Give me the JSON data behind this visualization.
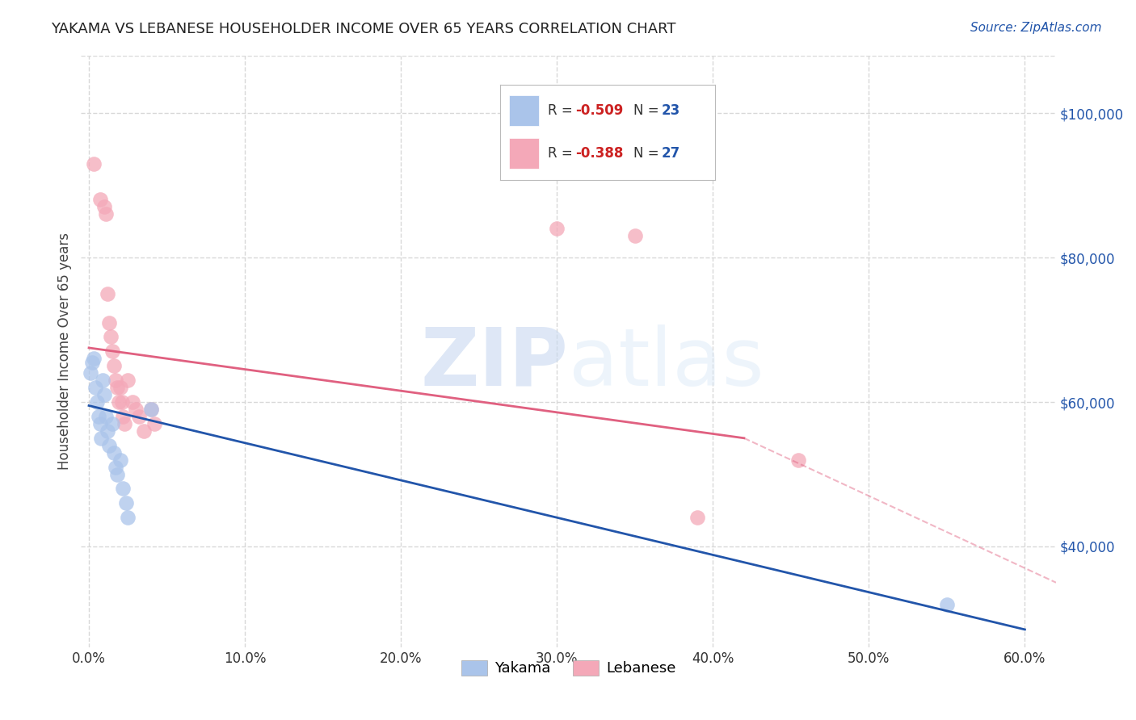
{
  "title": "YAKAMA VS LEBANESE HOUSEHOLDER INCOME OVER 65 YEARS CORRELATION CHART",
  "source": "Source: ZipAtlas.com",
  "ylabel": "Householder Income Over 65 years",
  "xlabel_ticks": [
    "0.0%",
    "10.0%",
    "20.0%",
    "30.0%",
    "40.0%",
    "50.0%",
    "60.0%"
  ],
  "ytick_labels": [
    "$40,000",
    "$60,000",
    "$80,000",
    "$100,000"
  ],
  "ytick_values": [
    40000,
    60000,
    80000,
    100000
  ],
  "xlim": [
    -0.005,
    0.62
  ],
  "ylim": [
    26000,
    108000
  ],
  "background_color": "#ffffff",
  "grid_color": "#d8d8d8",
  "watermark_zip": "ZIP",
  "watermark_atlas": "atlas",
  "legend": {
    "yakama_R": "-0.509",
    "yakama_N": "23",
    "lebanese_R": "-0.388",
    "lebanese_N": "27"
  },
  "yakama_color": "#aac4ea",
  "lebanese_color": "#f4a8b8",
  "yakama_line_color": "#2255aa",
  "lebanese_line_color": "#e06080",
  "yakama_points": [
    [
      0.001,
      64000
    ],
    [
      0.002,
      65500
    ],
    [
      0.003,
      66000
    ],
    [
      0.004,
      62000
    ],
    [
      0.005,
      60000
    ],
    [
      0.006,
      58000
    ],
    [
      0.007,
      57000
    ],
    [
      0.008,
      55000
    ],
    [
      0.009,
      63000
    ],
    [
      0.01,
      61000
    ],
    [
      0.011,
      58000
    ],
    [
      0.012,
      56000
    ],
    [
      0.013,
      54000
    ],
    [
      0.015,
      57000
    ],
    [
      0.016,
      53000
    ],
    [
      0.017,
      51000
    ],
    [
      0.018,
      50000
    ],
    [
      0.02,
      52000
    ],
    [
      0.022,
      48000
    ],
    [
      0.024,
      46000
    ],
    [
      0.025,
      44000
    ],
    [
      0.04,
      59000
    ],
    [
      0.55,
      32000
    ]
  ],
  "lebanese_points": [
    [
      0.003,
      93000
    ],
    [
      0.007,
      88000
    ],
    [
      0.01,
      87000
    ],
    [
      0.011,
      86000
    ],
    [
      0.012,
      75000
    ],
    [
      0.013,
      71000
    ],
    [
      0.014,
      69000
    ],
    [
      0.015,
      67000
    ],
    [
      0.016,
      65000
    ],
    [
      0.017,
      63000
    ],
    [
      0.018,
      62000
    ],
    [
      0.019,
      60000
    ],
    [
      0.02,
      62000
    ],
    [
      0.021,
      60000
    ],
    [
      0.022,
      58000
    ],
    [
      0.023,
      57000
    ],
    [
      0.025,
      63000
    ],
    [
      0.028,
      60000
    ],
    [
      0.03,
      59000
    ],
    [
      0.032,
      58000
    ],
    [
      0.035,
      56000
    ],
    [
      0.04,
      59000
    ],
    [
      0.042,
      57000
    ],
    [
      0.3,
      84000
    ],
    [
      0.35,
      83000
    ],
    [
      0.39,
      44000
    ],
    [
      0.455,
      52000
    ]
  ],
  "yakama_line": {
    "x0": 0.0,
    "y0": 59500,
    "x1": 0.6,
    "y1": 28500
  },
  "lebanese_line": {
    "x0": 0.0,
    "y0": 67500,
    "x1": 0.42,
    "y1": 55000
  },
  "lebanese_dashed_line": {
    "x0": 0.42,
    "y0": 55000,
    "x1": 0.62,
    "y1": 35000
  }
}
